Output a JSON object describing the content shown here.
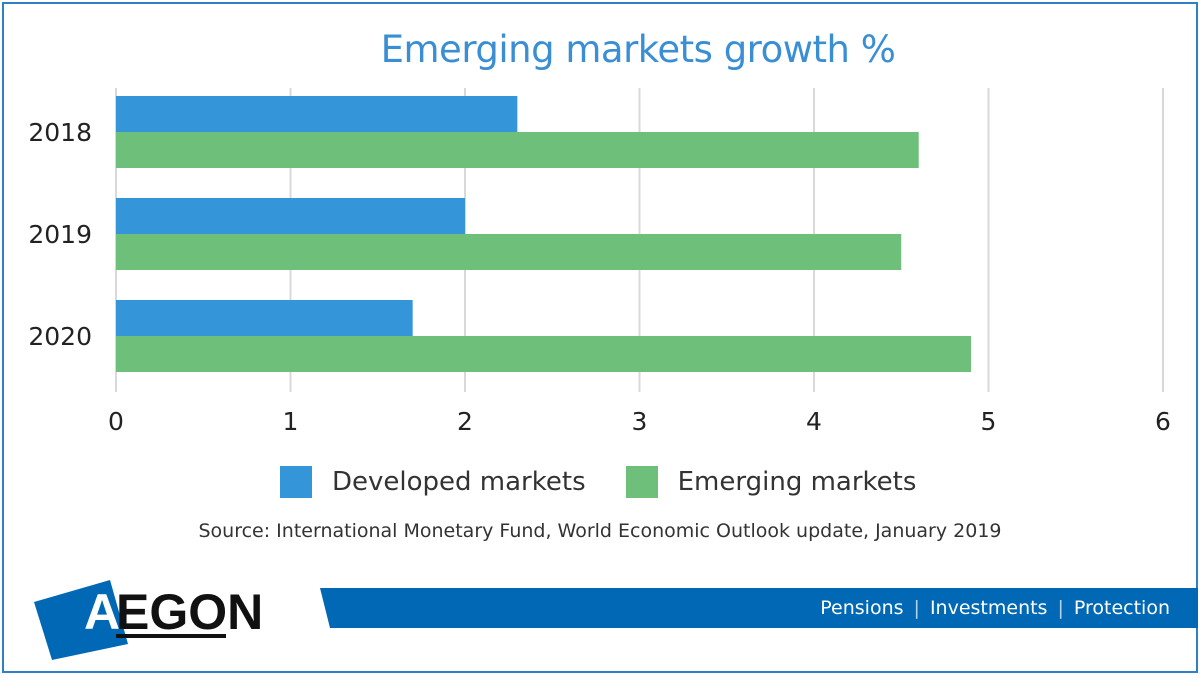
{
  "chart_data": {
    "type": "bar",
    "orientation": "horizontal",
    "title": "Emerging markets growth %",
    "categories": [
      "2018",
      "2019",
      "2020"
    ],
    "series": [
      {
        "name": "Developed markets",
        "values": [
          2.3,
          2.0,
          1.7
        ],
        "color": "#3495d9"
      },
      {
        "name": "Emerging markets",
        "values": [
          4.6,
          4.5,
          4.9
        ],
        "color": "#6dbf7a"
      }
    ],
    "xlim": [
      0,
      6
    ],
    "xticks": [
      0,
      1,
      2,
      3,
      4,
      5,
      6
    ],
    "grid": true,
    "legend_position": "bottom"
  },
  "source_text": "Source: International Monetary Fund, World Economic Outlook update, January 2019",
  "brand": {
    "logo_text": "AEGON",
    "tagline": [
      "Pensions",
      "Investments",
      "Protection"
    ],
    "colors": {
      "primary_blue": "#0068b4",
      "title_blue": "#3a8fd4",
      "border_blue": "#2f7fc8"
    }
  }
}
